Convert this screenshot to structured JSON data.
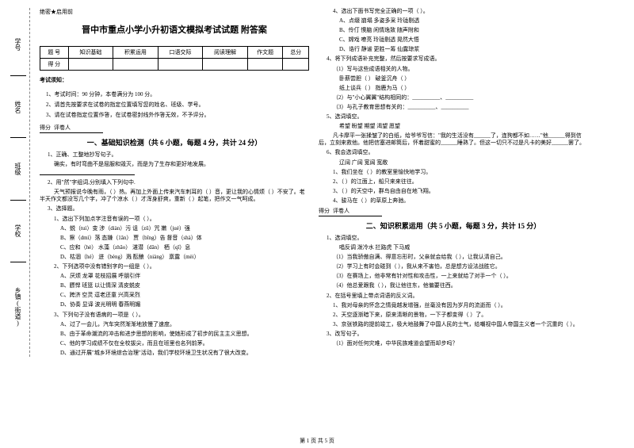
{
  "margin": {
    "labels": [
      "学号",
      "姓名",
      "班级",
      "学校",
      "乡镇(街道)"
    ],
    "cuts": [
      "裁",
      "内",
      "不",
      "封",
      "线",
      "答",
      "题",
      "订"
    ]
  },
  "secret": "绝密★启用前",
  "title": "晋中市重点小学小升初语文模拟考试试题 附答案",
  "score_table": {
    "row1": [
      "题 号",
      "知识基础",
      "积累运用",
      "口语交际",
      "阅读理解",
      "作文题",
      "总分"
    ],
    "row2": [
      "得 分",
      "",
      "",
      "",
      "",
      "",
      ""
    ]
  },
  "notice_title": "考试须知：",
  "notices": [
    "1、考试时间：90 分钟，本卷满分为 100 分。",
    "2、请首先按要求在试卷的指定位置填写您的姓名、班级、学号。",
    "3、请在试卷指定位置作答，在试卷密封线外作答无效，不予评分。"
  ],
  "scorehead": {
    "a": "得分",
    "b": "评卷人"
  },
  "section1": "一、基础知识检测（共 6 小题，每题 4 分，共计 24 分）",
  "q1": {
    "num": "1、正确、工整地抄写句子。",
    "text": "确实，有时弯曲不是屈服和毁灭，而是为了生存和更好地发展。"
  },
  "q2": {
    "num": "2、用\"然\"字组词,分别填入下列句中.",
    "text": "天气预报说今晚有雨，（  ）热。再加上外面上传来汽车刺耳的（  ）音，更让我的心情烦（  ）不安了。老半天作文都没写几个字，冲了个凉水（  ）才浑身舒爽，重新（  ）起笔，把作文一气呵成。"
  },
  "q3": {
    "num": "3、选择题。",
    "s1": "1、选出下列加点字注音有误的一项（  ）。",
    "s1a": "A、蜕（tuì）变    涉（diàn）污    诅（zǔ）咒    嫩（jué）强",
    "s1b": "B、察（dmì）落    态嫌（1ǎn）    贾（bǐng）告    督音（shà）体",
    "s1c": "C、应和（hè）    水藻（zhǎo）    湛潜（dǎn）    栖（qī）息",
    "s1d": "D、枯涸（hé）    迸（bèng）溅    酝酿（niàng）    禀露（mèi）",
    "s2": "2、下列选项中没有错别字的一组是（  ）。",
    "s2a": "A、厌烦    龙罩    花枝招展    呼朋引伴",
    "s2b": "B、膘悍    班篮    以让情深    清皮蜕皮",
    "s2c": "C、跨济    空灵    逗老还童    兴高采烈",
    "s2d": "D、协奏    显译    波光明明    春燕明媚",
    "s3": "3、下列句子没有语病的一项是（  ）。",
    "s3a": "A、过了一会儿，汽车突然渐渐地放慢了速度。",
    "s3b": "B、由于革命潮流的冲击和进步思想的影响，使她形成了初步的民主主义思想。",
    "s3c": "C、他的学习成绩不仅在全校拔尖，而且在班里也名列前茅。",
    "s3d": "D、通过开展\"城乡环境综合治理\"活动，我们学校环境卫生状况有了很大改变。"
  },
  "right": {
    "s4": "4、选出下面书写完全正确的一项（  ）。",
    "s4a": "A、点缀    崩塌    多姿多采    玲珑剔透",
    "s4b": "B、伶仃    懊脑    闲情逸致    随声附和",
    "s4c": "C、嫦戏    嘹亮    玲珑剔透    晃然大悟",
    "s4d": "D、诰行    静谧    更胜一筹    仙露琼浆",
    "q4": "4、将下列成语补充完整，然后按要求写成语。",
    "q4a": "（1）写与这些成语相关的人物。",
    "q4b": "卧薪尝胆（      ）    破釜沉舟（      ）",
    "q4c": "纸上谈兵（      ）    指鹿为马（      ）",
    "q4d": "（2）与\"小心翼翼\"结构相同的：__________、__________",
    "q4e": "（3）与孔子教育思想有关的：__________、__________",
    "q5": "5、选词填空。",
    "q5a": "希望    盼望    期望    渴望    愿望",
    "q5b": "凡卡摩平一张揉皱了的白纸，给爷爷写信：\"我的生活没有______了，连狗都不如……\"他______得到信后，立刻来救他。他把信塞进邮筒后，怀着甜蜜的______睡熟了。但这一切只不过是凡卡的美好______罢了。",
    "q6": "6、我会选词填空。",
    "q6a": "辽阔    广阔    宽阔    宽敞",
    "q6b": "1、我们坐在（  ）的教室里愉快地学习。",
    "q6c": "2、（  ）的江面上，船只来来往往。",
    "q6d": "3、（  ）的天空中，群鸟自由自在地飞翔。",
    "q6e": "4、骏马在（  ）的草原上奔驰。",
    "section2": "二、知识积累运用（共 5 小题，每题 3 分，共计 15 分）",
    "r1": "1、选词填空。",
    "r1a": "唱反调    泼冷水    拦路虎    下马威",
    "r1b": "（1）当我骄傲自满、得意忘形时，父亲就会给我（      ），让我认清自己。",
    "r1c": "（2）学习上有时会碰到（      ），我从来不害怕，总是想方设法战胜它。",
    "r1d": "（3）在赛场上，他非常有针对性和攻击性，一上来就给了对手一个（      ）。",
    "r1e": "（4）他总爱跟我（      ），我让他往东，他偏要往西。",
    "r2": "2、在括号里填上带点词语的反义词。",
    "r2a": "1、我对母亲的怀念之情竟越发增强，丝毫没有因为岁月的流逝而（      ）。",
    "r2b": "2、天空逐渐暗下来，原来清晰的景物，一下子都变得（      ）了。",
    "r2c": "3、京张铁路的提前竣工，极大地鼓舞了中国人民的士气，给嘲视中国人帝国主义者一个沉重的（      ）。",
    "r3": "3、改写句子。",
    "r3a": "（1）面对任何灾难，中华民族难道会望而却步吗？"
  },
  "footer": "第 1 页 共 5 页"
}
